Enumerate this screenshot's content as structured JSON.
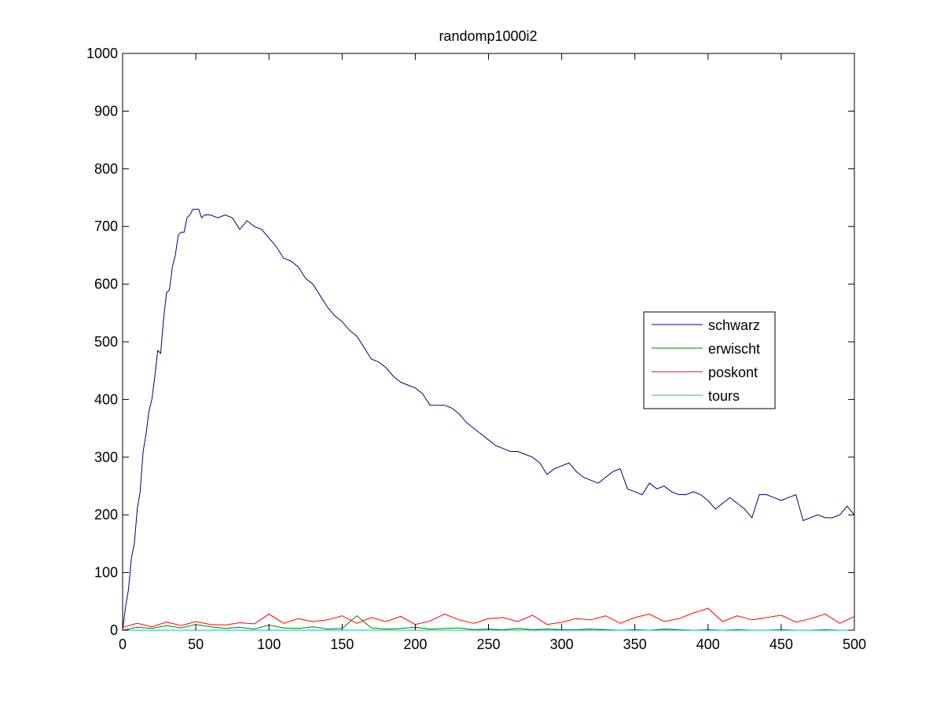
{
  "chart_data": {
    "type": "line",
    "title": "randomp1000i2",
    "xlabel": "",
    "ylabel": "",
    "xlim": [
      0,
      500
    ],
    "ylim": [
      0,
      1000
    ],
    "xticks": [
      "0",
      "50",
      "100",
      "150",
      "200",
      "250",
      "300",
      "350",
      "400",
      "450",
      "500"
    ],
    "yticks": [
      "0",
      "100",
      "200",
      "300",
      "400",
      "500",
      "600",
      "700",
      "800",
      "900",
      "1000"
    ],
    "grid": false,
    "legend_position": "right",
    "series": [
      {
        "name": "schwarz",
        "color": "#00007f",
        "x": [
          0,
          2,
          4,
          6,
          8,
          10,
          12,
          14,
          16,
          18,
          20,
          22,
          24,
          26,
          28,
          30,
          32,
          34,
          36,
          38,
          40,
          42,
          44,
          46,
          48,
          50,
          52,
          54,
          56,
          58,
          60,
          65,
          70,
          75,
          80,
          85,
          90,
          95,
          100,
          105,
          110,
          115,
          120,
          125,
          130,
          135,
          140,
          145,
          150,
          155,
          160,
          165,
          170,
          175,
          180,
          185,
          190,
          195,
          200,
          205,
          210,
          215,
          220,
          225,
          230,
          235,
          240,
          245,
          250,
          255,
          260,
          265,
          270,
          275,
          280,
          285,
          290,
          295,
          300,
          305,
          310,
          315,
          320,
          325,
          330,
          335,
          340,
          345,
          350,
          355,
          360,
          365,
          370,
          375,
          380,
          385,
          390,
          395,
          400,
          405,
          410,
          415,
          420,
          425,
          430,
          435,
          440,
          445,
          450,
          455,
          460,
          465,
          470,
          475,
          480,
          485,
          490,
          495,
          500
        ],
        "values": [
          0,
          40,
          70,
          125,
          150,
          210,
          240,
          310,
          340,
          380,
          400,
          440,
          485,
          480,
          540,
          585,
          590,
          630,
          650,
          685,
          690,
          690,
          715,
          720,
          730,
          730,
          730,
          715,
          720,
          720,
          720,
          715,
          720,
          715,
          695,
          710,
          700,
          695,
          680,
          665,
          645,
          640,
          630,
          610,
          600,
          580,
          560,
          545,
          535,
          520,
          510,
          490,
          470,
          465,
          455,
          440,
          430,
          425,
          420,
          410,
          390,
          390,
          390,
          385,
          375,
          360,
          350,
          340,
          330,
          320,
          315,
          310,
          310,
          305,
          300,
          290,
          270,
          280,
          285,
          290,
          275,
          265,
          260,
          255,
          265,
          275,
          280,
          245,
          240,
          235,
          255,
          245,
          250,
          240,
          235,
          235,
          240,
          235,
          225,
          210,
          220,
          230,
          220,
          210,
          195,
          235,
          235,
          230,
          225,
          230,
          235,
          190,
          195,
          200,
          195,
          195,
          200,
          215,
          200
        ]
      },
      {
        "name": "erwischt",
        "color": "#007f00",
        "x": [
          0,
          10,
          20,
          30,
          40,
          50,
          60,
          70,
          80,
          90,
          100,
          110,
          120,
          130,
          140,
          150,
          160,
          170,
          180,
          190,
          200,
          210,
          220,
          230,
          240,
          250,
          260,
          270,
          280,
          290,
          300,
          310,
          320,
          330,
          340,
          350,
          360,
          370,
          380,
          390,
          400,
          410,
          420,
          430,
          440,
          450,
          460,
          470,
          480,
          490,
          500
        ],
        "values": [
          0,
          5,
          3,
          8,
          4,
          10,
          6,
          3,
          5,
          2,
          9,
          4,
          3,
          6,
          2,
          3,
          25,
          4,
          2,
          3,
          5,
          2,
          3,
          4,
          1,
          2,
          1,
          3,
          1,
          2,
          1,
          1,
          2,
          1,
          0,
          1,
          0,
          2,
          1,
          0,
          1,
          0,
          1,
          0,
          0,
          1,
          0,
          0,
          1,
          0,
          0
        ]
      },
      {
        "name": "poskont",
        "color": "#ff0000",
        "x": [
          0,
          10,
          20,
          30,
          40,
          50,
          60,
          70,
          80,
          90,
          100,
          110,
          120,
          130,
          140,
          150,
          160,
          170,
          180,
          190,
          200,
          210,
          220,
          230,
          240,
          250,
          260,
          270,
          280,
          290,
          300,
          310,
          320,
          330,
          340,
          350,
          360,
          370,
          380,
          390,
          400,
          410,
          420,
          430,
          440,
          450,
          460,
          470,
          480,
          490,
          500
        ],
        "values": [
          5,
          12,
          6,
          14,
          8,
          15,
          10,
          9,
          13,
          11,
          28,
          12,
          20,
          15,
          18,
          25,
          12,
          22,
          15,
          24,
          10,
          16,
          28,
          18,
          12,
          20,
          22,
          15,
          26,
          10,
          14,
          20,
          18,
          25,
          12,
          22,
          28,
          15,
          20,
          30,
          38,
          15,
          25,
          18,
          22,
          26,
          14,
          20,
          28,
          12,
          24
        ]
      },
      {
        "name": "tours",
        "color": "#00bfbf",
        "x": [
          0,
          500
        ],
        "values": [
          0,
          0
        ]
      }
    ]
  }
}
